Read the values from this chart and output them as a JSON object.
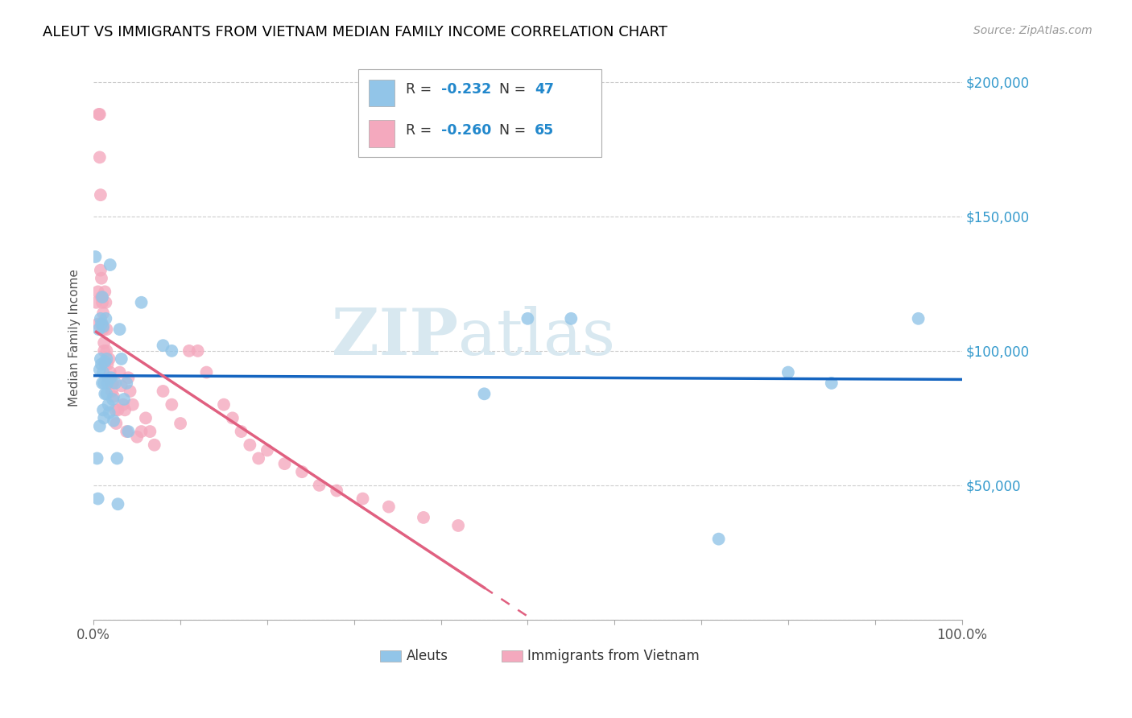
{
  "title": "ALEUT VS IMMIGRANTS FROM VIETNAM MEDIAN FAMILY INCOME CORRELATION CHART",
  "source": "Source: ZipAtlas.com",
  "ylabel": "Median Family Income",
  "yticks": [
    0,
    50000,
    100000,
    150000,
    200000
  ],
  "ytick_labels": [
    "",
    "$50,000",
    "$100,000",
    "$150,000",
    "$200,000"
  ],
  "legend_label1": "Aleuts",
  "legend_label2": "Immigrants from Vietnam",
  "R1": -0.232,
  "N1": 47,
  "R2": -0.26,
  "N2": 65,
  "color_blue": "#92c5e8",
  "color_pink": "#f4a9be",
  "color_blue_line": "#1565c0",
  "color_pink_line": "#e06080",
  "watermark_color": "#d8e8f0",
  "aleuts_x": [
    0.002,
    0.004,
    0.005,
    0.006,
    0.007,
    0.007,
    0.008,
    0.008,
    0.009,
    0.009,
    0.01,
    0.01,
    0.011,
    0.011,
    0.011,
    0.012,
    0.012,
    0.013,
    0.013,
    0.014,
    0.015,
    0.015,
    0.016,
    0.017,
    0.018,
    0.019,
    0.02,
    0.022,
    0.023,
    0.025,
    0.027,
    0.028,
    0.03,
    0.032,
    0.035,
    0.038,
    0.04,
    0.055,
    0.08,
    0.09,
    0.45,
    0.5,
    0.55,
    0.72,
    0.8,
    0.85,
    0.95
  ],
  "aleuts_y": [
    135000,
    60000,
    45000,
    108000,
    93000,
    72000,
    112000,
    97000,
    110000,
    95000,
    120000,
    88000,
    109000,
    92000,
    78000,
    88000,
    75000,
    84000,
    96000,
    112000,
    97000,
    84000,
    88000,
    80000,
    77000,
    132000,
    90000,
    82000,
    74000,
    88000,
    60000,
    43000,
    108000,
    97000,
    82000,
    88000,
    70000,
    118000,
    102000,
    100000,
    84000,
    112000,
    112000,
    30000,
    92000,
    88000,
    112000
  ],
  "vietnam_x": [
    0.003,
    0.005,
    0.005,
    0.006,
    0.007,
    0.007,
    0.008,
    0.008,
    0.009,
    0.009,
    0.01,
    0.01,
    0.011,
    0.011,
    0.012,
    0.012,
    0.013,
    0.013,
    0.014,
    0.015,
    0.015,
    0.016,
    0.017,
    0.018,
    0.019,
    0.02,
    0.021,
    0.022,
    0.023,
    0.025,
    0.026,
    0.028,
    0.03,
    0.032,
    0.034,
    0.036,
    0.038,
    0.04,
    0.042,
    0.045,
    0.05,
    0.055,
    0.06,
    0.065,
    0.07,
    0.08,
    0.09,
    0.1,
    0.11,
    0.12,
    0.13,
    0.15,
    0.16,
    0.17,
    0.18,
    0.19,
    0.2,
    0.22,
    0.24,
    0.26,
    0.28,
    0.31,
    0.34,
    0.38,
    0.42
  ],
  "vietnam_y": [
    118000,
    122000,
    110000,
    188000,
    188000,
    172000,
    158000,
    130000,
    127000,
    120000,
    118000,
    110000,
    114000,
    108000,
    103000,
    100000,
    95000,
    122000,
    118000,
    108000,
    100000,
    95000,
    90000,
    97000,
    92000,
    88000,
    85000,
    88000,
    83000,
    78000,
    73000,
    78000,
    92000,
    87000,
    80000,
    78000,
    70000,
    90000,
    85000,
    80000,
    68000,
    70000,
    75000,
    70000,
    65000,
    85000,
    80000,
    73000,
    100000,
    100000,
    92000,
    80000,
    75000,
    70000,
    65000,
    60000,
    63000,
    58000,
    55000,
    50000,
    48000,
    45000,
    42000,
    38000,
    35000
  ]
}
